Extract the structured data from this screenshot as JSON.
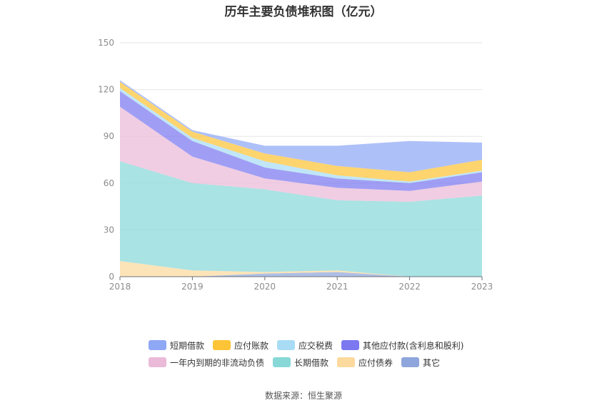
{
  "chart_data": {
    "type": "area",
    "title": "历年主要负债堆积图（亿元）",
    "categories": [
      "2018",
      "2019",
      "2020",
      "2021",
      "2022",
      "2023"
    ],
    "ylim": [
      0,
      150
    ],
    "yticks": [
      0,
      30,
      60,
      90,
      120,
      150
    ],
    "grid": true,
    "legend_position": "bottom",
    "series": [
      {
        "name": "短期借款",
        "color": "#8fa8f5",
        "values": [
          1,
          1,
          5,
          13,
          20,
          11
        ]
      },
      {
        "name": "应付账款",
        "color": "#fcc436",
        "values": [
          4,
          4,
          5,
          6,
          6,
          7
        ]
      },
      {
        "name": "应交税费",
        "color": "#a8dcf5",
        "values": [
          2,
          2,
          4,
          2,
          1,
          1
        ]
      },
      {
        "name": "其他应付款(含利息和股利)",
        "color": "#7b78f0",
        "values": [
          10,
          10,
          7,
          6,
          5,
          6
        ]
      },
      {
        "name": "一年内到期的非流动负债",
        "color": "#eabad8",
        "values": [
          35,
          17,
          7,
          8,
          7,
          9
        ]
      },
      {
        "name": "长期借款",
        "color": "#88d8d8",
        "values": [
          64,
          56,
          53,
          45,
          48,
          52
        ]
      },
      {
        "name": "应付债券",
        "color": "#fcd99c",
        "values": [
          10,
          4,
          1,
          1,
          0,
          0
        ]
      },
      {
        "name": "其它",
        "color": "#8ea6db",
        "values": [
          0,
          0,
          2,
          3,
          0,
          0
        ]
      }
    ]
  },
  "source": "数据来源：恒生聚源"
}
